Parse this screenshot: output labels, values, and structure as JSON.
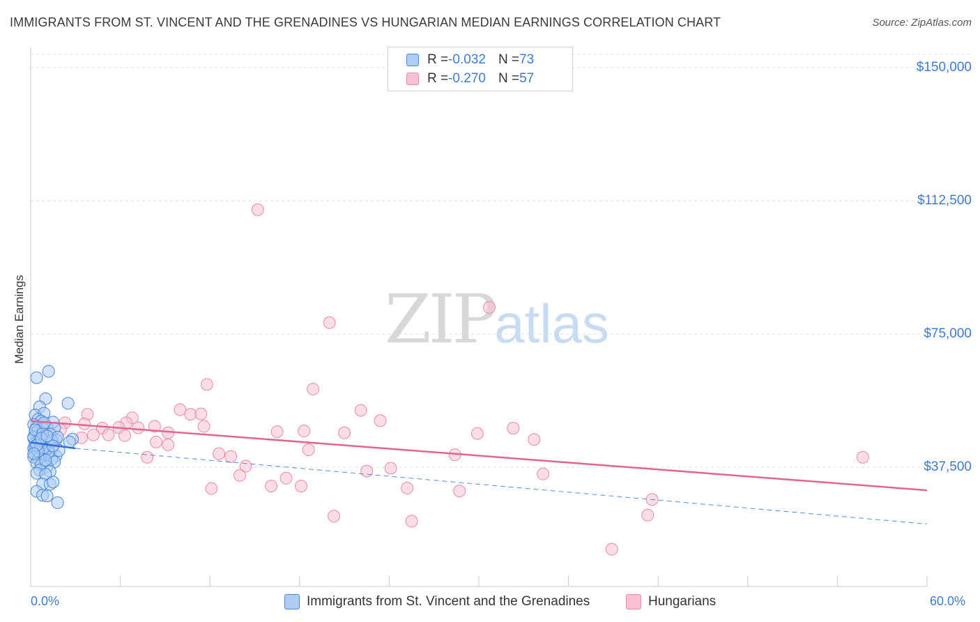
{
  "title": "IMMIGRANTS FROM ST. VINCENT AND THE GRENADINES VS HUNGARIAN MEDIAN EARNINGS CORRELATION CHART",
  "source": "Source: ZipAtlas.com",
  "watermark": {
    "zip": "ZIP",
    "atlas": "atlas"
  },
  "legend": {
    "series1": {
      "r_label": "R = ",
      "r_value": "-0.032",
      "n_label": "N = ",
      "n_value": "73"
    },
    "series2": {
      "r_label": "R = ",
      "r_value": "-0.270",
      "n_label": "N = ",
      "n_value": "57"
    }
  },
  "colors": {
    "blue_fill": "#aecdf5",
    "blue_stroke": "#4a86d6",
    "blue_line": "#2f6fd0",
    "pink_fill": "#f7c1d2",
    "pink_stroke": "#e88aa8",
    "pink_line": "#e2648f",
    "tick_text": "#3d7bd1",
    "grid": "#dcdcdc"
  },
  "chart_data": {
    "type": "scatter",
    "ylabel": "Median Earnings",
    "xlim": [
      0,
      60
    ],
    "ylim": [
      0,
      157500
    ],
    "x_tick_labels": {
      "left": "0.0%",
      "right": "60.0%"
    },
    "y_ticks": [
      {
        "value": 37500,
        "label": "$37,500"
      },
      {
        "value": 75000,
        "label": "$75,000"
      },
      {
        "value": 112500,
        "label": "$112,500"
      },
      {
        "value": 150000,
        "label": "$150,000"
      }
    ],
    "grid": true,
    "legend_position": "top-center",
    "series": [
      {
        "name": "Immigrants from St. Vincent and the Grenadines",
        "color": "blue",
        "trend": {
          "x0": 0.0,
          "y0": 44500,
          "x1": 3.0,
          "y1": 42800,
          "dashed_to_x": 60.0,
          "dashed_y_end": 21500
        },
        "points": [
          [
            0.4,
            62700
          ],
          [
            1.2,
            64500
          ],
          [
            1.0,
            56800
          ],
          [
            2.5,
            55500
          ],
          [
            0.6,
            54500
          ],
          [
            0.3,
            52200
          ],
          [
            0.9,
            52700
          ],
          [
            0.5,
            51000
          ],
          [
            1.5,
            50200
          ],
          [
            0.7,
            50500
          ],
          [
            0.2,
            49500
          ],
          [
            0.4,
            48700
          ],
          [
            0.8,
            48300
          ],
          [
            1.1,
            48800
          ],
          [
            1.6,
            48500
          ],
          [
            0.3,
            47200
          ],
          [
            0.6,
            46500
          ],
          [
            1.3,
            46800
          ],
          [
            0.2,
            45600
          ],
          [
            0.5,
            45000
          ],
          [
            0.9,
            45200
          ],
          [
            1.7,
            45200
          ],
          [
            2.8,
            45400
          ],
          [
            0.3,
            44300
          ],
          [
            0.7,
            43800
          ],
          [
            1.2,
            44200
          ],
          [
            2.6,
            44600
          ],
          [
            0.2,
            42800
          ],
          [
            0.4,
            42500
          ],
          [
            0.8,
            42200
          ],
          [
            1.4,
            42600
          ],
          [
            0.3,
            41600
          ],
          [
            0.6,
            41000
          ],
          [
            1.0,
            40700
          ],
          [
            1.7,
            40700
          ],
          [
            0.2,
            40300
          ],
          [
            0.5,
            39700
          ],
          [
            0.9,
            39300
          ],
          [
            1.4,
            39700
          ],
          [
            1.6,
            39000
          ],
          [
            0.4,
            38700
          ],
          [
            0.7,
            38200
          ],
          [
            1.1,
            37700
          ],
          [
            0.6,
            36700
          ],
          [
            1.3,
            36300
          ],
          [
            0.4,
            35800
          ],
          [
            1.0,
            35500
          ],
          [
            0.8,
            32800
          ],
          [
            1.3,
            32700
          ],
          [
            1.5,
            33300
          ],
          [
            0.4,
            30700
          ],
          [
            0.8,
            29600
          ],
          [
            1.1,
            29400
          ],
          [
            1.8,
            27500
          ],
          [
            0.3,
            43300
          ],
          [
            1.9,
            42200
          ],
          [
            0.5,
            47700
          ],
          [
            1.2,
            41700
          ],
          [
            0.9,
            43000
          ],
          [
            0.2,
            46000
          ],
          [
            0.6,
            44700
          ],
          [
            1.4,
            45000
          ],
          [
            0.3,
            48000
          ],
          [
            0.8,
            47000
          ],
          [
            1.0,
            39500
          ],
          [
            0.5,
            42000
          ],
          [
            1.8,
            46000
          ],
          [
            0.4,
            43700
          ],
          [
            0.7,
            45700
          ],
          [
            1.1,
            46300
          ],
          [
            0.2,
            41300
          ],
          [
            0.9,
            50000
          ],
          [
            1.5,
            43500
          ]
        ]
      },
      {
        "name": "Hungarians",
        "color": "pink",
        "trend": {
          "x0": 0.0,
          "y0": 50500,
          "x1": 60.0,
          "y1": 31000
        },
        "points": [
          [
            15.2,
            110000
          ],
          [
            30.7,
            82500
          ],
          [
            20.0,
            78200
          ],
          [
            11.8,
            60800
          ],
          [
            18.9,
            59500
          ],
          [
            22.1,
            53500
          ],
          [
            10.0,
            53700
          ],
          [
            10.7,
            52400
          ],
          [
            11.4,
            52500
          ],
          [
            3.8,
            52400
          ],
          [
            6.8,
            51400
          ],
          [
            23.4,
            50600
          ],
          [
            2.3,
            50000
          ],
          [
            6.4,
            50000
          ],
          [
            3.6,
            49700
          ],
          [
            8.3,
            49000
          ],
          [
            11.6,
            49000
          ],
          [
            4.8,
            48500
          ],
          [
            5.9,
            48700
          ],
          [
            9.2,
            47200
          ],
          [
            7.2,
            48600
          ],
          [
            16.5,
            47500
          ],
          [
            18.3,
            47700
          ],
          [
            21.0,
            47200
          ],
          [
            32.3,
            48500
          ],
          [
            29.9,
            47000
          ],
          [
            33.7,
            45300
          ],
          [
            4.2,
            46600
          ],
          [
            3.4,
            45800
          ],
          [
            5.2,
            46600
          ],
          [
            6.3,
            46400
          ],
          [
            8.4,
            44600
          ],
          [
            9.2,
            43800
          ],
          [
            18.6,
            42400
          ],
          [
            12.6,
            41300
          ],
          [
            28.4,
            41000
          ],
          [
            13.4,
            40500
          ],
          [
            7.8,
            40300
          ],
          [
            55.7,
            40300
          ],
          [
            14.4,
            37800
          ],
          [
            24.1,
            37200
          ],
          [
            22.5,
            36400
          ],
          [
            34.3,
            35600
          ],
          [
            14.0,
            35200
          ],
          [
            17.1,
            34400
          ],
          [
            16.1,
            32200
          ],
          [
            18.1,
            32200
          ],
          [
            12.1,
            31500
          ],
          [
            25.2,
            31600
          ],
          [
            28.7,
            30800
          ],
          [
            41.6,
            28400
          ],
          [
            20.3,
            23700
          ],
          [
            25.5,
            22300
          ],
          [
            41.3,
            24000
          ],
          [
            38.9,
            14400
          ],
          [
            1.5,
            45000
          ],
          [
            2.0,
            48000
          ]
        ]
      }
    ]
  }
}
